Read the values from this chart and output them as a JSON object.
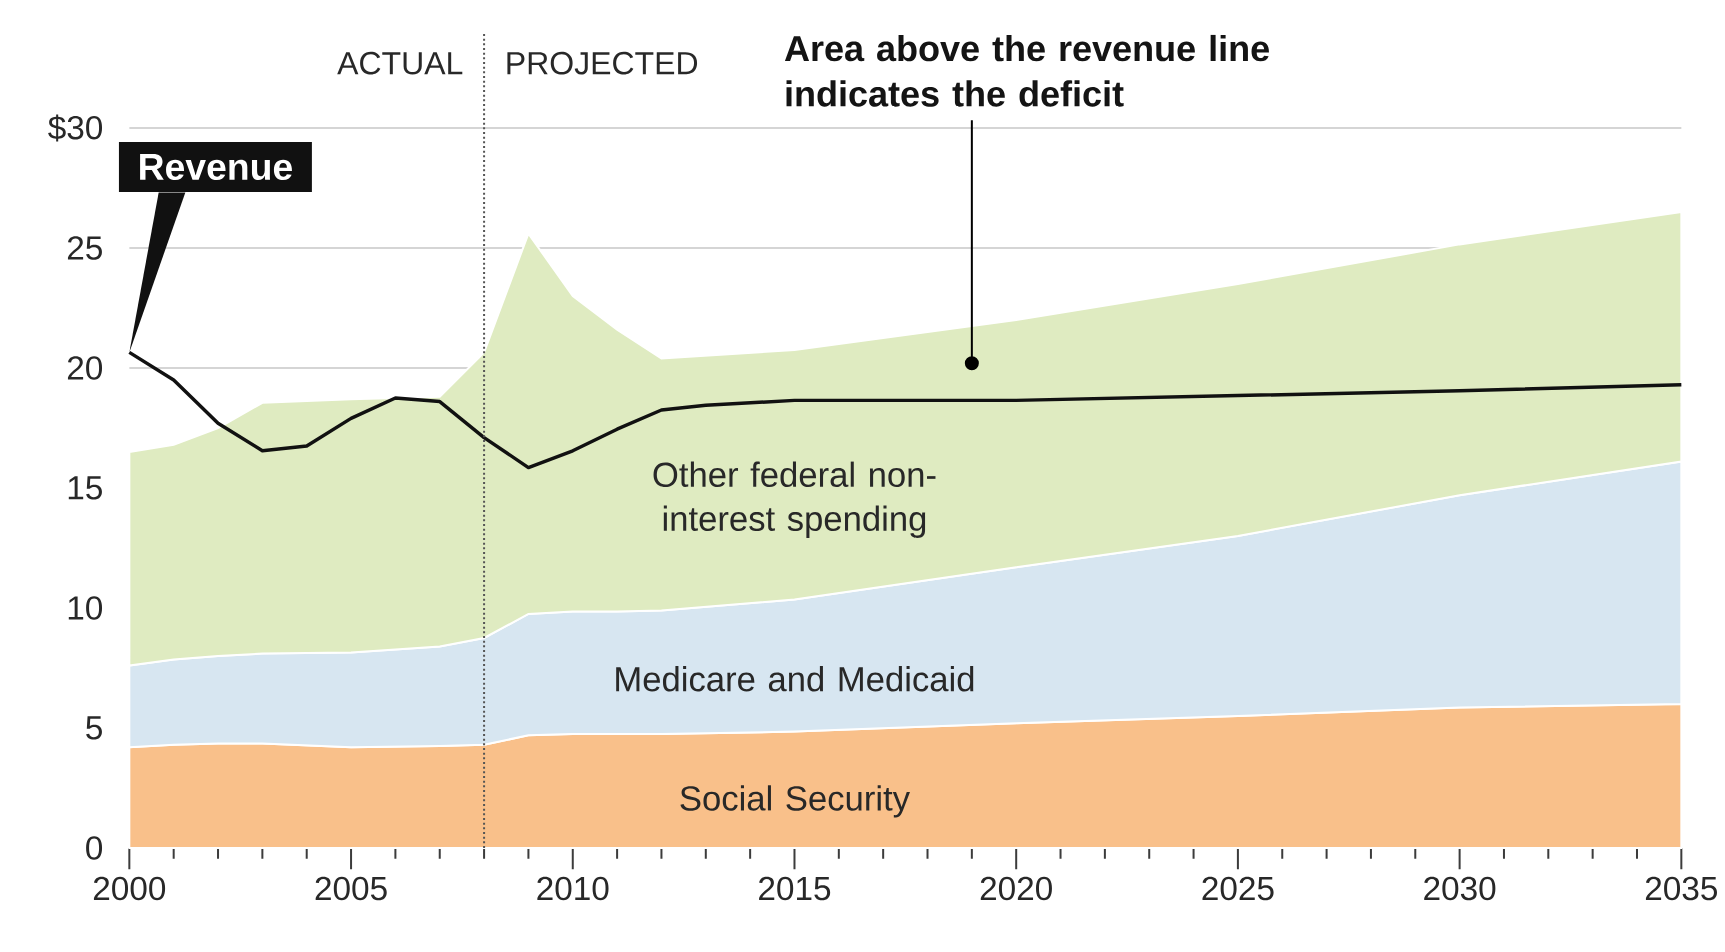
{
  "chart_data": {
    "type": "area",
    "stacked": true,
    "grid": "y",
    "x": [
      2000,
      2001,
      2002,
      2003,
      2005,
      2007,
      2008,
      2009,
      2010,
      2011,
      2012,
      2015,
      2020,
      2025,
      2030,
      2035
    ],
    "series": [
      {
        "name": "Social Security",
        "color": "#f9c08a",
        "values": [
          4.2,
          4.3,
          4.35,
          4.35,
          4.2,
          4.25,
          4.3,
          4.7,
          4.75,
          4.75,
          4.75,
          4.85,
          5.2,
          5.5,
          5.85,
          6.0
        ]
      },
      {
        "name": "Medicare and Medicaid",
        "color": "#d7e6f1",
        "values": [
          3.4,
          3.55,
          3.65,
          3.75,
          3.95,
          4.15,
          4.45,
          5.05,
          5.1,
          5.1,
          5.15,
          5.5,
          6.5,
          7.5,
          8.85,
          10.1
        ]
      },
      {
        "name": "Other federal non-interest spending",
        "color": "#dfebc1",
        "values": [
          8.9,
          8.95,
          9.5,
          10.45,
          10.55,
          10.4,
          11.9,
          15.85,
          13.15,
          11.75,
          10.5,
          10.4,
          10.3,
          10.5,
          10.45,
          10.4
        ]
      },
      {
        "name": "Revenue",
        "type": "line",
        "color": "#111111",
        "x": [
          2000,
          2001,
          2002,
          2003,
          2004,
          2005,
          2006,
          2007,
          2008,
          2009,
          2010,
          2011,
          2012,
          2013,
          2015,
          2020,
          2025,
          2030,
          2035
        ],
        "values": [
          20.65,
          19.5,
          17.7,
          16.55,
          16.75,
          17.9,
          18.75,
          18.6,
          17.1,
          15.85,
          16.55,
          17.45,
          18.25,
          18.45,
          18.65,
          18.65,
          18.85,
          19.05,
          19.3
        ]
      }
    ],
    "xlim": [
      2000,
      2035
    ],
    "ylim": [
      0,
      34
    ],
    "xticks": [
      2000,
      {
        "value": 2001,
        "label": null
      },
      {
        "value": 2002,
        "label": null
      },
      {
        "value": 2003,
        "label": null
      },
      {
        "value": 2004,
        "label": null
      },
      2005,
      {
        "value": 2006,
        "label": null
      },
      {
        "value": 2007,
        "label": null
      },
      {
        "value": 2008,
        "label": null
      },
      {
        "value": 2009,
        "label": null
      },
      2010,
      {
        "value": 2011,
        "label": null
      },
      {
        "value": 2012,
        "label": null
      },
      {
        "value": 2013,
        "label": null
      },
      {
        "value": 2014,
        "label": null
      },
      2015,
      {
        "value": 2016,
        "label": null
      },
      {
        "value": 2017,
        "label": null
      },
      {
        "value": 2018,
        "label": null
      },
      {
        "value": 2019,
        "label": null
      },
      2020,
      {
        "value": 2021,
        "label": null
      },
      {
        "value": 2022,
        "label": null
      },
      {
        "value": 2023,
        "label": null
      },
      {
        "value": 2024,
        "label": null
      },
      2025,
      {
        "value": 2026,
        "label": null
      },
      {
        "value": 2027,
        "label": null
      },
      {
        "value": 2028,
        "label": null
      },
      {
        "value": 2029,
        "label": null
      },
      2030,
      {
        "value": 2031,
        "label": null
      },
      {
        "value": 2032,
        "label": null
      },
      {
        "value": 2033,
        "label": null
      },
      {
        "value": 2034,
        "label": null
      },
      2035
    ],
    "yticks": [
      0,
      5,
      10,
      15,
      20,
      25,
      {
        "value": 30,
        "label": "$30"
      }
    ],
    "ref_lines": [
      {
        "axis": "x",
        "value": 2008,
        "color": "#555555",
        "line_style": "dotted"
      }
    ],
    "annotations": [
      "ACTUAL",
      "PROJECTED",
      {
        "text": "Area above the revenue line indicates the deficit",
        "x": 2019,
        "y": 20.2
      }
    ]
  }
}
